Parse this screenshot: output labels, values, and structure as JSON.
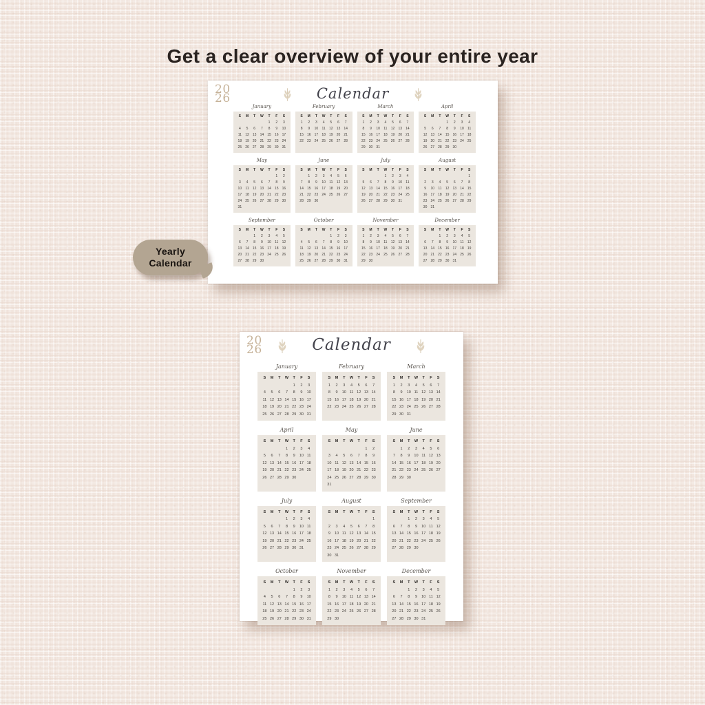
{
  "page": {
    "title": "Get a clear overview of your entire year",
    "background_color": "#f2e7e0",
    "paper_color": "#ffffff"
  },
  "badge": {
    "line1": "Yearly",
    "line2": "Calendar",
    "color": "#b3a592",
    "text_color": "#181310"
  },
  "calendar": {
    "title": "Calendar",
    "year_top": "20",
    "year_bottom": "26",
    "accent_color": "#c6b298",
    "leaf_color": "#ddd0ba",
    "month_box_color": "#ebe6df",
    "day_headers": [
      "S",
      "M",
      "T",
      "W",
      "T",
      "F",
      "S"
    ],
    "months": [
      {
        "name": "January",
        "start": 4,
        "days": 31
      },
      {
        "name": "February",
        "start": 0,
        "days": 28
      },
      {
        "name": "March",
        "start": 0,
        "days": 31
      },
      {
        "name": "April",
        "start": 3,
        "days": 30
      },
      {
        "name": "May",
        "start": 5,
        "days": 31
      },
      {
        "name": "June",
        "start": 1,
        "days": 30
      },
      {
        "name": "July",
        "start": 3,
        "days": 31
      },
      {
        "name": "August",
        "start": 6,
        "days": 31
      },
      {
        "name": "September",
        "start": 2,
        "days": 30
      },
      {
        "name": "October",
        "start": 4,
        "days": 31
      },
      {
        "name": "November",
        "start": 0,
        "days": 30
      },
      {
        "name": "December",
        "start": 2,
        "days": 31
      }
    ]
  }
}
